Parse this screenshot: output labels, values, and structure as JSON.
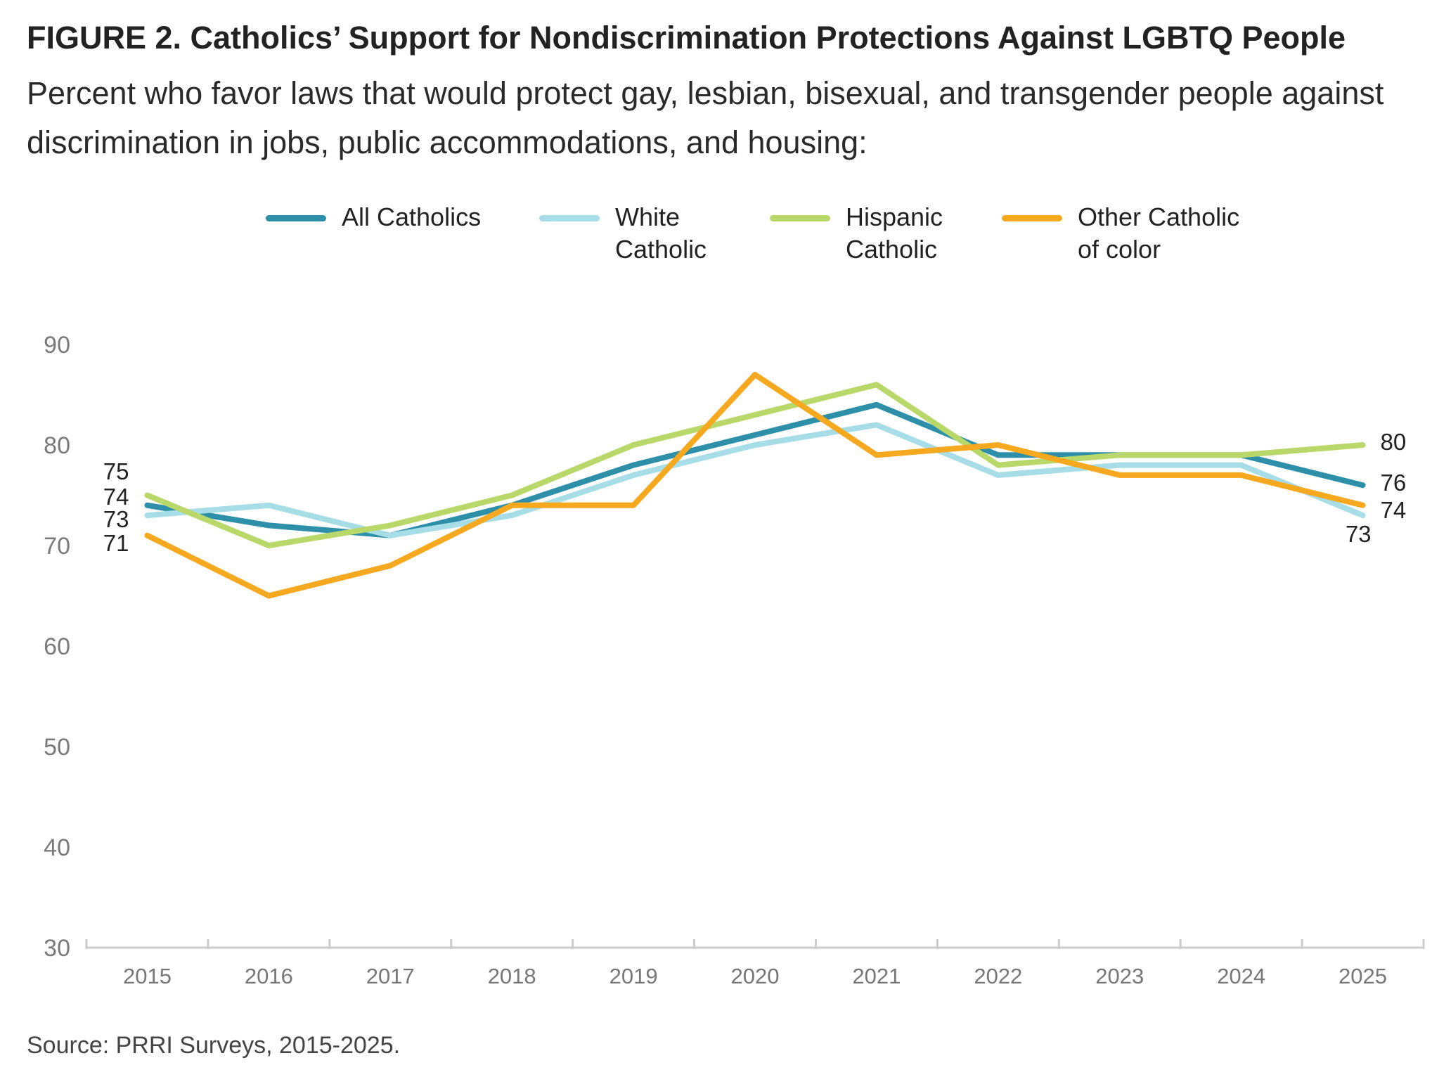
{
  "title": "FIGURE 2. Catholics’ Support for Nondiscrimination Protections Against LGBTQ People",
  "subtitle": "Percent who favor laws that would protect gay, lesbian, bisexual, and transgender people against discrimination in jobs, public accommodations, and housing:",
  "source": "Source: PRRI Surveys, 2015-2025.",
  "legend": [
    {
      "label_line1": "All Catholics",
      "label_line2": "",
      "color": "#2e8fa8"
    },
    {
      "label_line1": "White",
      "label_line2": "Catholic",
      "color": "#a6dde6"
    },
    {
      "label_line1": "Hispanic",
      "label_line2": "Catholic",
      "color": "#b9d86a"
    },
    {
      "label_line1": "Other Catholic",
      "label_line2": "of color",
      "color": "#f6a81f"
    }
  ],
  "chart_data": {
    "type": "line",
    "title": "FIGURE 2. Catholics’ Support for Nondiscrimination Protections Against LGBTQ People",
    "x": [
      "2015",
      "2016",
      "2017",
      "2018",
      "2019",
      "2020",
      "2021",
      "2022",
      "2023",
      "2024",
      "2025"
    ],
    "ylim": [
      30,
      90
    ],
    "yticks": [
      30,
      40,
      50,
      60,
      70,
      80,
      90
    ],
    "grid": false,
    "legend_position": "top",
    "series": [
      {
        "name": "All Catholics",
        "color": "#2e8fa8",
        "values": [
          74,
          72,
          71,
          74,
          78,
          81,
          84,
          79,
          79,
          79,
          76
        ]
      },
      {
        "name": "White Catholic",
        "color": "#a6dde6",
        "values": [
          73,
          74,
          71,
          73,
          77,
          80,
          82,
          77,
          78,
          78,
          73
        ]
      },
      {
        "name": "Hispanic Catholic",
        "color": "#b9d86a",
        "values": [
          75,
          70,
          72,
          75,
          80,
          83,
          86,
          78,
          79,
          79,
          80
        ]
      },
      {
        "name": "Other Catholic of color",
        "color": "#f6a81f",
        "values": [
          71,
          65,
          68,
          74,
          74,
          87,
          79,
          80,
          77,
          77,
          74
        ]
      }
    ],
    "start_labels": [
      "75",
      "74",
      "73",
      "71"
    ],
    "end_labels": [
      "80",
      "76",
      "74",
      "73"
    ]
  }
}
